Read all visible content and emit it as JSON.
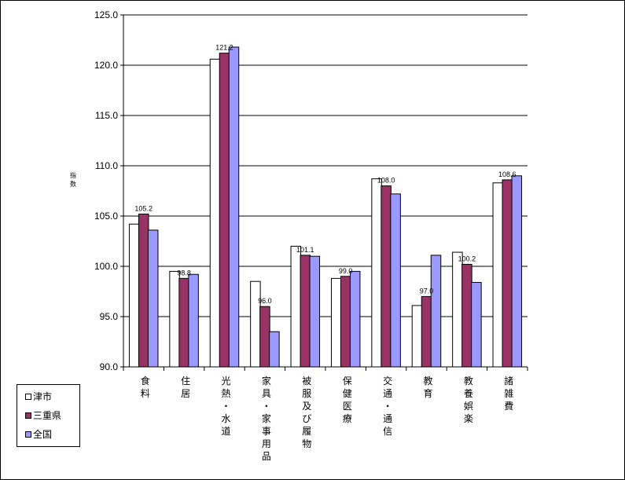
{
  "chart_data": {
    "type": "bar",
    "ylabel": "指数",
    "ylim": [
      90.0,
      125.0
    ],
    "yticks": [
      "90.0",
      "95.0",
      "100.0",
      "105.0",
      "110.0",
      "115.0",
      "120.0",
      "125.0"
    ],
    "grid": true,
    "legend_position": "bottom-left",
    "categories": [
      "食料",
      "住居",
      "光熱・水道",
      "家具・家事用品",
      "被服及び履物",
      "保健医療",
      "交通・通信",
      "教育",
      "教養娯楽",
      "諸雑費"
    ],
    "series": [
      {
        "name": "津市",
        "color": "#ffffff",
        "values": [
          104.2,
          99.5,
          120.6,
          98.5,
          102.0,
          98.8,
          108.7,
          96.1,
          101.4,
          108.3
        ]
      },
      {
        "name": "三重県",
        "color": "#993366",
        "values": [
          105.2,
          98.8,
          121.2,
          96.0,
          101.1,
          99.0,
          108.0,
          97.0,
          100.2,
          108.6
        ]
      },
      {
        "name": "全国",
        "color": "#9999ff",
        "values": [
          103.6,
          99.2,
          121.8,
          93.5,
          101.0,
          99.5,
          107.2,
          101.1,
          98.4,
          109.0
        ]
      }
    ],
    "data_labels": {
      "series": "三重県",
      "values": [
        "105.2",
        "98.8",
        "121.2",
        "96.0",
        "101.1",
        "99.0",
        "108.0",
        "97.0",
        "100.2",
        "108.6"
      ]
    }
  }
}
